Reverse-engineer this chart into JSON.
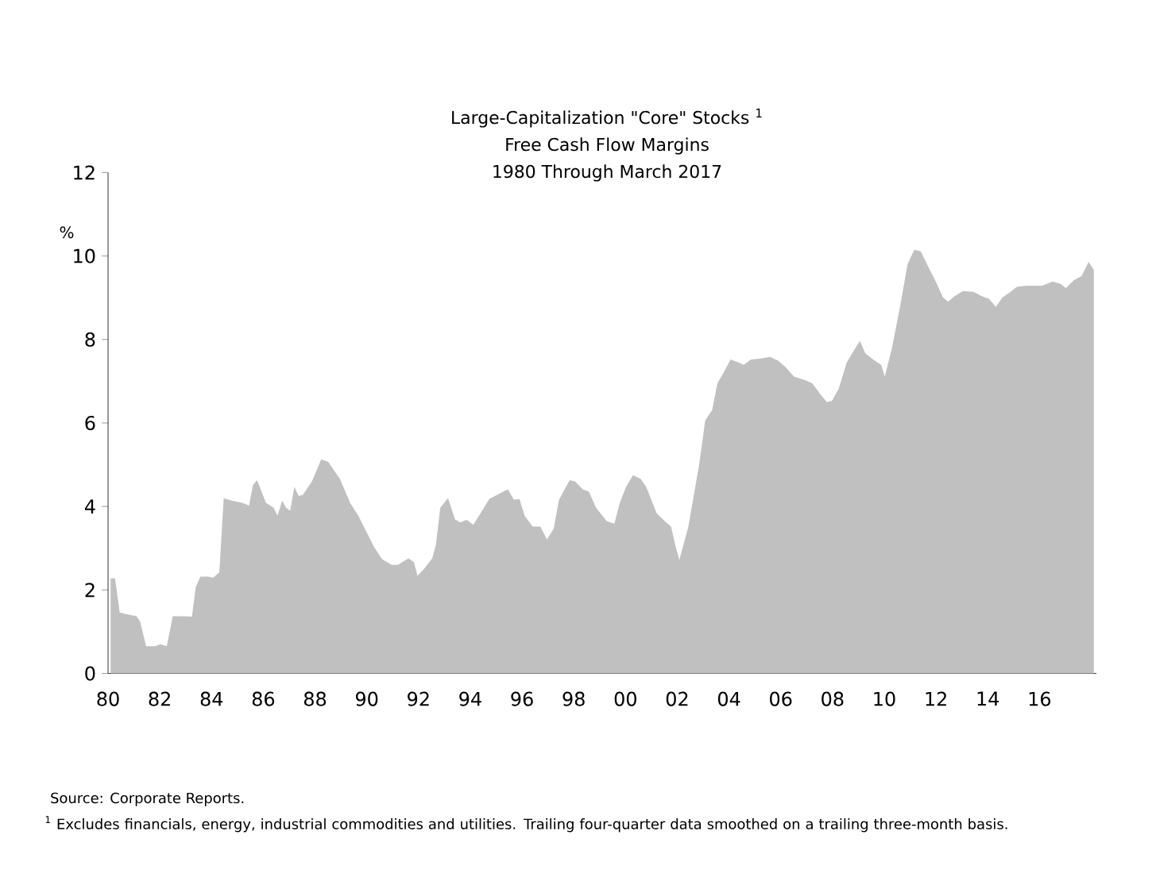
{
  "chart_data": {
    "type": "area",
    "title": "Large-Capitalization \"Core\" Stocks $^{1}$",
    "subtitle": "Free Cash Flow Margins",
    "ylabel": "%",
    "color": "#c0c0c0",
    "annotations": [
      "1980 Through March 2017",
      "Source: Corporate Reports.",
      "$^{1}$ Excludes financials, energy, industrial commodities and utilities.  Trailing four-quarter data smoothed on a trailing three-month basis."
    ],
    "x": [
      1980.1,
      1980.27,
      1980.45,
      1980.8,
      1981.1,
      1981.24,
      1981.47,
      1981.82,
      1982.02,
      1982.27,
      1982.5,
      1982.94,
      1983.24,
      1983.39,
      1983.57,
      1983.86,
      1984.06,
      1984.3,
      1984.47,
      1984.78,
      1985.18,
      1985.45,
      1985.6,
      1985.76,
      1986.1,
      1986.4,
      1986.55,
      1986.73,
      1986.88,
      1987.04,
      1987.2,
      1987.37,
      1987.53,
      1987.88,
      1988.24,
      1988.51,
      1988.96,
      1989.37,
      1989.67,
      1989.98,
      1990.29,
      1990.59,
      1990.96,
      1991.2,
      1991.61,
      1991.82,
      1991.96,
      1992.22,
      1992.53,
      1992.67,
      1992.84,
      1993.14,
      1993.41,
      1993.61,
      1993.86,
      1994.12,
      1994.43,
      1994.73,
      1995.04,
      1995.45,
      1995.69,
      1995.9,
      1996.1,
      1996.41,
      1996.71,
      1996.96,
      1997.22,
      1997.43,
      1997.84,
      1998.04,
      1998.35,
      1998.59,
      1998.86,
      1999.27,
      1999.57,
      1999.78,
      2000.02,
      2000.29,
      2000.59,
      2000.8,
      2001.2,
      2001.51,
      2001.76,
      2001.92,
      2002.08,
      2002.43,
      2002.84,
      2003.08,
      2003.35,
      2003.55,
      2003.82,
      2004.06,
      2004.37,
      2004.57,
      2004.84,
      2005.18,
      2005.59,
      2005.9,
      2006.2,
      2006.51,
      2006.92,
      2007.22,
      2007.53,
      2007.78,
      2007.98,
      2008.24,
      2008.55,
      2008.86,
      2009.06,
      2009.27,
      2009.57,
      2009.88,
      2010.02,
      2010.29,
      2010.59,
      2010.9,
      2011.16,
      2011.41,
      2011.71,
      2012.02,
      2012.27,
      2012.47,
      2012.73,
      2013.04,
      2013.45,
      2013.76,
      2014.06,
      2014.31,
      2014.57,
      2014.88,
      2015.12,
      2015.49,
      2015.8,
      2016.1,
      2016.51,
      2016.82,
      2017.02,
      2017.33,
      2017.63,
      2017.9,
      2018.1
    ],
    "values": [
      2.28,
      2.28,
      1.46,
      1.41,
      1.37,
      1.24,
      0.65,
      0.65,
      0.7,
      0.65,
      1.37,
      1.37,
      1.36,
      2.07,
      2.32,
      2.32,
      2.29,
      2.42,
      4.2,
      4.14,
      4.09,
      4.02,
      4.51,
      4.63,
      4.09,
      3.97,
      3.78,
      4.14,
      3.97,
      3.9,
      4.47,
      4.25,
      4.28,
      4.6,
      5.13,
      5.07,
      4.66,
      4.07,
      3.78,
      3.4,
      3.02,
      2.74,
      2.6,
      2.6,
      2.76,
      2.67,
      2.34,
      2.51,
      2.76,
      3.08,
      3.97,
      4.2,
      3.69,
      3.62,
      3.68,
      3.56,
      3.87,
      4.18,
      4.28,
      4.41,
      4.16,
      4.18,
      3.78,
      3.52,
      3.52,
      3.21,
      3.46,
      4.16,
      4.63,
      4.6,
      4.41,
      4.35,
      3.97,
      3.65,
      3.59,
      4.09,
      4.47,
      4.75,
      4.66,
      4.47,
      3.84,
      3.65,
      3.52,
      3.08,
      2.72,
      3.52,
      4.98,
      6.06,
      6.31,
      6.95,
      7.24,
      7.52,
      7.45,
      7.39,
      7.52,
      7.54,
      7.58,
      7.49,
      7.33,
      7.11,
      7.03,
      6.95,
      6.69,
      6.5,
      6.53,
      6.82,
      7.45,
      7.77,
      7.96,
      7.67,
      7.52,
      7.39,
      7.11,
      7.77,
      8.72,
      9.8,
      10.15,
      10.11,
      9.73,
      9.35,
      9.01,
      8.91,
      9.04,
      9.16,
      9.14,
      9.04,
      8.97,
      8.78,
      9.01,
      9.14,
      9.26,
      9.29,
      9.29,
      9.29,
      9.39,
      9.33,
      9.23,
      9.42,
      9.52,
      9.86,
      9.67
    ],
    "xlim": [
      1980,
      2018.2
    ],
    "ylim": [
      0,
      12
    ],
    "xticks": [
      {
        "value": 1980,
        "label": "80"
      },
      {
        "value": 1982,
        "label": "82"
      },
      {
        "value": 1984,
        "label": "84"
      },
      {
        "value": 1986,
        "label": "86"
      },
      {
        "value": 1988,
        "label": "88"
      },
      {
        "value": 1990,
        "label": "90"
      },
      {
        "value": 1992,
        "label": "92"
      },
      {
        "value": 1994,
        "label": "94"
      },
      {
        "value": 1996,
        "label": "96"
      },
      {
        "value": 1998,
        "label": "98"
      },
      {
        "value": 2000,
        "label": "00"
      },
      {
        "value": 2002,
        "label": "02"
      },
      {
        "value": 2004,
        "label": "04"
      },
      {
        "value": 2006,
        "label": "06"
      },
      {
        "value": 2008,
        "label": "08"
      },
      {
        "value": 2010,
        "label": "10"
      },
      {
        "value": 2012,
        "label": "12"
      },
      {
        "value": 2014,
        "label": "14"
      },
      {
        "value": 2016,
        "label": "16"
      }
    ],
    "yticks": [
      0,
      2,
      4,
      6,
      8,
      10,
      12
    ]
  }
}
